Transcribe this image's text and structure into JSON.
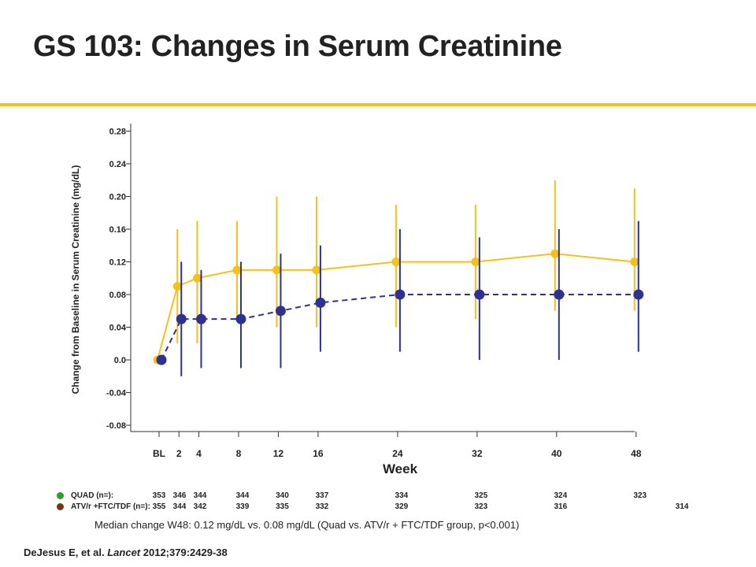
{
  "slide": {
    "title": "GS 103: Changes in Serum Creatinine",
    "accent_color": "#f2c21b",
    "median_note": "Median change W48:  0.12 mg/dL vs. 0.08 mg/dL (Quad vs. ATV/r + FTC/TDF group, p<0.001)",
    "citation": {
      "authors": "DeJesus E, et al. ",
      "journal": "Lancet",
      "ref": " 2012;379:2429-38"
    }
  },
  "n_table": {
    "rows": [
      {
        "label": "QUAD (n=):",
        "color": "#2e9e2e",
        "values": [
          "353",
          "346",
          "344",
          "344",
          "340",
          "337",
          "334",
          "325",
          "324",
          "323"
        ]
      },
      {
        "label": "ATV/r +FTC/TDF (n=):",
        "color": "#6b3a12",
        "values": [
          "355",
          "344",
          "342",
          "339",
          "335",
          "332",
          "329",
          "323",
          "316",
          "314"
        ]
      }
    ]
  },
  "chart_data": {
    "type": "line",
    "title": "",
    "xlabel": "Week",
    "ylabel": "Change from Baseline in Serum Creatinine (mg/dL)",
    "x": [
      "BL",
      "2",
      "4",
      "8",
      "12",
      "16",
      "24",
      "32",
      "40",
      "48"
    ],
    "x_weeks": [
      0,
      2,
      4,
      8,
      12,
      16,
      24,
      32,
      40,
      48
    ],
    "ylim": [
      -0.08,
      0.29
    ],
    "yticks": [
      -0.08,
      -0.04,
      0.0,
      0.04,
      0.08,
      0.12,
      0.16,
      0.2,
      0.24,
      0.28
    ],
    "ytick_labels": [
      "-0.08",
      "-0.04",
      "0.0",
      "0.04",
      "0.08",
      "0.12",
      "0.16",
      "0.20",
      "0.24",
      "0.28"
    ],
    "grid": false,
    "series": [
      {
        "name": "QUAD",
        "color": "#f2c21b",
        "line": "solid",
        "values": [
          0.0,
          0.09,
          0.1,
          0.11,
          0.11,
          0.11,
          0.12,
          0.12,
          0.13,
          0.12
        ],
        "err_low": [
          0.0,
          0.02,
          0.02,
          0.05,
          0.04,
          0.04,
          0.04,
          0.05,
          0.06,
          0.06
        ],
        "err_high": [
          0.0,
          0.16,
          0.17,
          0.17,
          0.2,
          0.2,
          0.19,
          0.19,
          0.22,
          0.21
        ]
      },
      {
        "name": "ATV/r + FTC/TDF",
        "color": "#2e3192",
        "line": "dashed",
        "values": [
          0.0,
          0.05,
          0.05,
          0.05,
          0.06,
          0.07,
          0.08,
          0.08,
          0.08,
          0.08
        ],
        "err_low": [
          0.0,
          -0.02,
          -0.01,
          -0.01,
          -0.01,
          0.01,
          0.01,
          0.0,
          0.0,
          0.01
        ],
        "err_high": [
          0.0,
          0.12,
          0.11,
          0.12,
          0.13,
          0.14,
          0.16,
          0.15,
          0.16,
          0.17
        ]
      }
    ]
  }
}
